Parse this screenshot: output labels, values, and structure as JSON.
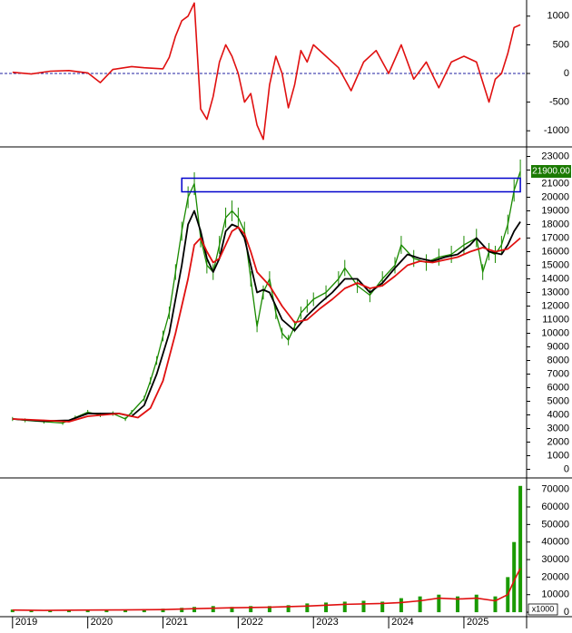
{
  "chart_data": [
    {
      "type": "line",
      "panel": "oscillator",
      "ylim": [
        -1250,
        1250
      ],
      "y_ticks": [
        1000,
        500,
        0,
        -500,
        -1000
      ],
      "y_tick_labels": [
        "1000",
        "500",
        "0",
        "-500",
        "-1000"
      ],
      "zero_line": "dashed-blue",
      "series": [
        {
          "color": "#e01010",
          "points": [
            [
              "2019-01",
              20
            ],
            [
              "2019-04",
              -10
            ],
            [
              "2019-07",
              40
            ],
            [
              "2019-10",
              50
            ],
            [
              "2020-01",
              10
            ],
            [
              "2020-03",
              -160
            ],
            [
              "2020-05",
              70
            ],
            [
              "2020-08",
              120
            ],
            [
              "2020-10",
              100
            ],
            [
              "2021-01",
              80
            ],
            [
              "2021-02",
              280
            ],
            [
              "2021-03",
              650
            ],
            [
              "2021-04",
              920
            ],
            [
              "2021-05",
              1000
            ],
            [
              "2021-06",
              1230
            ],
            [
              "2021-07",
              -620
            ],
            [
              "2021-08",
              -800
            ],
            [
              "2021-09",
              -400
            ],
            [
              "2021-10",
              200
            ],
            [
              "2021-11",
              500
            ],
            [
              "2021-12",
              300
            ],
            [
              "2022-01",
              0
            ],
            [
              "2022-02",
              -500
            ],
            [
              "2022-03",
              -350
            ],
            [
              "2022-04",
              -900
            ],
            [
              "2022-05",
              -1150
            ],
            [
              "2022-06",
              -200
            ],
            [
              "2022-07",
              300
            ],
            [
              "2022-08",
              0
            ],
            [
              "2022-09",
              -600
            ],
            [
              "2022-10",
              -200
            ],
            [
              "2022-11",
              400
            ],
            [
              "2022-12",
              200
            ],
            [
              "2023-01",
              500
            ],
            [
              "2023-03",
              300
            ],
            [
              "2023-05",
              100
            ],
            [
              "2023-07",
              -300
            ],
            [
              "2023-09",
              200
            ],
            [
              "2023-11",
              400
            ],
            [
              "2024-01",
              0
            ],
            [
              "2024-03",
              500
            ],
            [
              "2024-05",
              -100
            ],
            [
              "2024-07",
              200
            ],
            [
              "2024-09",
              -250
            ],
            [
              "2024-11",
              200
            ],
            [
              "2025-01",
              300
            ],
            [
              "2025-03",
              200
            ],
            [
              "2025-05",
              -500
            ],
            [
              "2025-06",
              -100
            ],
            [
              "2025-07",
              0
            ],
            [
              "2025-08",
              350
            ],
            [
              "2025-09",
              800
            ],
            [
              "2025-10",
              850
            ]
          ]
        }
      ]
    },
    {
      "type": "line",
      "panel": "price",
      "ylim": [
        -500,
        23500
      ],
      "y_ticks": [
        0,
        1000,
        2000,
        3000,
        4000,
        5000,
        6000,
        7000,
        8000,
        9000,
        10000,
        11000,
        12000,
        13000,
        14000,
        15000,
        16000,
        17000,
        18000,
        19000,
        20000,
        21000,
        22000,
        23000
      ],
      "y_tick_labels": [
        "0",
        "1000",
        "2000",
        "3000",
        "4000",
        "5000",
        "6000",
        "7000",
        "8000",
        "9000",
        "10000",
        "11000",
        "12000",
        "13000",
        "14000",
        "15000",
        "16000",
        "17000",
        "18000",
        "19000",
        "20000",
        "21000",
        "22000",
        "23000"
      ],
      "last_price_label": "21900.00",
      "last_price": 21900,
      "resistance_box": {
        "x_from": "2021-04",
        "x_to": "2025-10",
        "y_from": 20400,
        "y_to": 21400,
        "color": "#0000cc"
      },
      "price_color": "#1a8a00",
      "price": [
        [
          "2019-01",
          3700
        ],
        [
          "2019-03",
          3600
        ],
        [
          "2019-06",
          3500
        ],
        [
          "2019-09",
          3400
        ],
        [
          "2019-11",
          3800
        ],
        [
          "2020-01",
          4200
        ],
        [
          "2020-03",
          4000
        ],
        [
          "2020-05",
          4100
        ],
        [
          "2020-07",
          3700
        ],
        [
          "2020-08",
          4200
        ],
        [
          "2020-10",
          5200
        ],
        [
          "2020-11",
          6500
        ],
        [
          "2020-12",
          8000
        ],
        [
          "2021-01",
          9800
        ],
        [
          "2021-02",
          11500
        ],
        [
          "2021-03",
          14500
        ],
        [
          "2021-04",
          17500
        ],
        [
          "2021-05",
          20000
        ],
        [
          "2021-06",
          21000
        ],
        [
          "2021-07",
          17000
        ],
        [
          "2021-08",
          15000
        ],
        [
          "2021-09",
          14500
        ],
        [
          "2021-10",
          16500
        ],
        [
          "2021-11",
          18500
        ],
        [
          "2021-12",
          19000
        ],
        [
          "2022-01",
          18500
        ],
        [
          "2022-02",
          17500
        ],
        [
          "2022-03",
          14000
        ],
        [
          "2022-04",
          10500
        ],
        [
          "2022-05",
          13000
        ],
        [
          "2022-06",
          14000
        ],
        [
          "2022-07",
          11500
        ],
        [
          "2022-08",
          10000
        ],
        [
          "2022-09",
          9500
        ],
        [
          "2022-10",
          10500
        ],
        [
          "2022-11",
          11500
        ],
        [
          "2022-12",
          12000
        ],
        [
          "2023-01",
          12500
        ],
        [
          "2023-03",
          13000
        ],
        [
          "2023-05",
          14000
        ],
        [
          "2023-06",
          14800
        ],
        [
          "2023-08",
          13500
        ],
        [
          "2023-10",
          12800
        ],
        [
          "2023-12",
          14000
        ],
        [
          "2024-02",
          15000
        ],
        [
          "2024-03",
          16500
        ],
        [
          "2024-05",
          15500
        ],
        [
          "2024-07",
          15200
        ],
        [
          "2024-09",
          15600
        ],
        [
          "2024-11",
          15800
        ],
        [
          "2025-01",
          16500
        ],
        [
          "2025-03",
          17000
        ],
        [
          "2025-04",
          14500
        ],
        [
          "2025-05",
          16000
        ],
        [
          "2025-06",
          15800
        ],
        [
          "2025-07",
          16500
        ],
        [
          "2025-08",
          18000
        ],
        [
          "2025-09",
          20500
        ],
        [
          "2025-10",
          21900
        ]
      ],
      "series": [
        {
          "color": "#000000",
          "points": [
            [
              "2019-01",
              3700
            ],
            [
              "2019-06",
              3550
            ],
            [
              "2019-10",
              3600
            ],
            [
              "2020-01",
              4100
            ],
            [
              "2020-06",
              4100
            ],
            [
              "2020-08",
              3900
            ],
            [
              "2020-10",
              4700
            ],
            [
              "2020-12",
              7000
            ],
            [
              "2021-02",
              10000
            ],
            [
              "2021-04",
              15000
            ],
            [
              "2021-05",
              18000
            ],
            [
              "2021-06",
              19000
            ],
            [
              "2021-07",
              17500
            ],
            [
              "2021-08",
              15500
            ],
            [
              "2021-09",
              14500
            ],
            [
              "2021-10",
              15500
            ],
            [
              "2021-11",
              17500
            ],
            [
              "2021-12",
              18000
            ],
            [
              "2022-01",
              17800
            ],
            [
              "2022-02",
              17000
            ],
            [
              "2022-03",
              15000
            ],
            [
              "2022-04",
              13000
            ],
            [
              "2022-05",
              13200
            ],
            [
              "2022-06",
              13000
            ],
            [
              "2022-08",
              11000
            ],
            [
              "2022-10",
              10200
            ],
            [
              "2022-12",
              11300
            ],
            [
              "2023-02",
              12200
            ],
            [
              "2023-04",
              13000
            ],
            [
              "2023-06",
              14000
            ],
            [
              "2023-08",
              14000
            ],
            [
              "2023-10",
              13000
            ],
            [
              "2023-12",
              13700
            ],
            [
              "2024-02",
              14800
            ],
            [
              "2024-04",
              15800
            ],
            [
              "2024-06",
              15500
            ],
            [
              "2024-08",
              15300
            ],
            [
              "2024-10",
              15600
            ],
            [
              "2024-12",
              15800
            ],
            [
              "2025-02",
              16500
            ],
            [
              "2025-03",
              17000
            ],
            [
              "2025-05",
              16000
            ],
            [
              "2025-07",
              15800
            ],
            [
              "2025-08",
              16500
            ],
            [
              "2025-09",
              17500
            ],
            [
              "2025-10",
              18200
            ]
          ]
        },
        {
          "color": "#e01010",
          "points": [
            [
              "2019-01",
              3700
            ],
            [
              "2019-06",
              3600
            ],
            [
              "2019-10",
              3500
            ],
            [
              "2020-01",
              3900
            ],
            [
              "2020-06",
              4100
            ],
            [
              "2020-09",
              3800
            ],
            [
              "2020-11",
              4500
            ],
            [
              "2021-01",
              6500
            ],
            [
              "2021-03",
              10000
            ],
            [
              "2021-05",
              14000
            ],
            [
              "2021-06",
              16500
            ],
            [
              "2021-07",
              17000
            ],
            [
              "2021-08",
              16000
            ],
            [
              "2021-09",
              15200
            ],
            [
              "2021-10",
              15500
            ],
            [
              "2021-11",
              16500
            ],
            [
              "2021-12",
              17500
            ],
            [
              "2022-01",
              17800
            ],
            [
              "2022-02",
              17300
            ],
            [
              "2022-03",
              16000
            ],
            [
              "2022-04",
              14500
            ],
            [
              "2022-06",
              13500
            ],
            [
              "2022-08",
              12000
            ],
            [
              "2022-10",
              10800
            ],
            [
              "2022-12",
              11000
            ],
            [
              "2023-02",
              11800
            ],
            [
              "2023-04",
              12500
            ],
            [
              "2023-06",
              13300
            ],
            [
              "2023-08",
              13700
            ],
            [
              "2023-10",
              13300
            ],
            [
              "2023-12",
              13500
            ],
            [
              "2024-02",
              14200
            ],
            [
              "2024-04",
              15000
            ],
            [
              "2024-06",
              15300
            ],
            [
              "2024-08",
              15200
            ],
            [
              "2024-10",
              15400
            ],
            [
              "2024-12",
              15600
            ],
            [
              "2025-02",
              16000
            ],
            [
              "2025-04",
              16300
            ],
            [
              "2025-06",
              16000
            ],
            [
              "2025-08",
              16200
            ],
            [
              "2025-10",
              17000
            ]
          ]
        }
      ]
    },
    {
      "type": "bar",
      "panel": "volume",
      "unit_label": "x1000",
      "ylim": [
        -1000,
        75000
      ],
      "y_ticks": [
        0,
        10000,
        20000,
        30000,
        40000,
        50000,
        60000,
        70000
      ],
      "y_tick_labels": [
        "0",
        "10000",
        "20000",
        "30000",
        "40000",
        "50000",
        "60000",
        "70000"
      ],
      "bar_color": "#1a9a00",
      "volume": [
        [
          "2019-01",
          1500
        ],
        [
          "2019-04",
          1200
        ],
        [
          "2019-07",
          1000
        ],
        [
          "2019-10",
          1300
        ],
        [
          "2020-01",
          1500
        ],
        [
          "2020-04",
          1400
        ],
        [
          "2020-07",
          1600
        ],
        [
          "2020-10",
          1800
        ],
        [
          "2021-01",
          2000
        ],
        [
          "2021-04",
          2500
        ],
        [
          "2021-06",
          3000
        ],
        [
          "2021-09",
          3500
        ],
        [
          "2021-12",
          3000
        ],
        [
          "2022-03",
          3500
        ],
        [
          "2022-06",
          3500
        ],
        [
          "2022-09",
          4000
        ],
        [
          "2022-12",
          5000
        ],
        [
          "2023-03",
          5500
        ],
        [
          "2023-06",
          6000
        ],
        [
          "2023-09",
          6500
        ],
        [
          "2023-12",
          6000
        ],
        [
          "2024-03",
          8000
        ],
        [
          "2024-06",
          9000
        ],
        [
          "2024-09",
          10000
        ],
        [
          "2024-12",
          9000
        ],
        [
          "2025-03",
          10000
        ],
        [
          "2025-06",
          9000
        ],
        [
          "2025-08",
          20000
        ],
        [
          "2025-09",
          40000
        ],
        [
          "2025-10",
          72000
        ]
      ],
      "series": [
        {
          "color": "#e01010",
          "points": [
            [
              "2019-01",
              1200
            ],
            [
              "2019-06",
              1000
            ],
            [
              "2020-01",
              1200
            ],
            [
              "2020-06",
              1300
            ],
            [
              "2021-01",
              1500
            ],
            [
              "2021-06",
              2000
            ],
            [
              "2021-12",
              2500
            ],
            [
              "2022-06",
              2800
            ],
            [
              "2022-12",
              3500
            ],
            [
              "2023-06",
              4500
            ],
            [
              "2023-12",
              5000
            ],
            [
              "2024-03",
              5500
            ],
            [
              "2024-06",
              6500
            ],
            [
              "2024-09",
              8000
            ],
            [
              "2024-12",
              7500
            ],
            [
              "2025-03",
              8000
            ],
            [
              "2025-06",
              6500
            ],
            [
              "2025-08",
              10000
            ],
            [
              "2025-09",
              18000
            ],
            [
              "2025-10",
              25000
            ]
          ]
        }
      ]
    }
  ],
  "x_axis": {
    "range": [
      "2018-11",
      "2025-11"
    ],
    "years": [
      "2019",
      "2020",
      "2021",
      "2022",
      "2023",
      "2024",
      "2025"
    ]
  }
}
